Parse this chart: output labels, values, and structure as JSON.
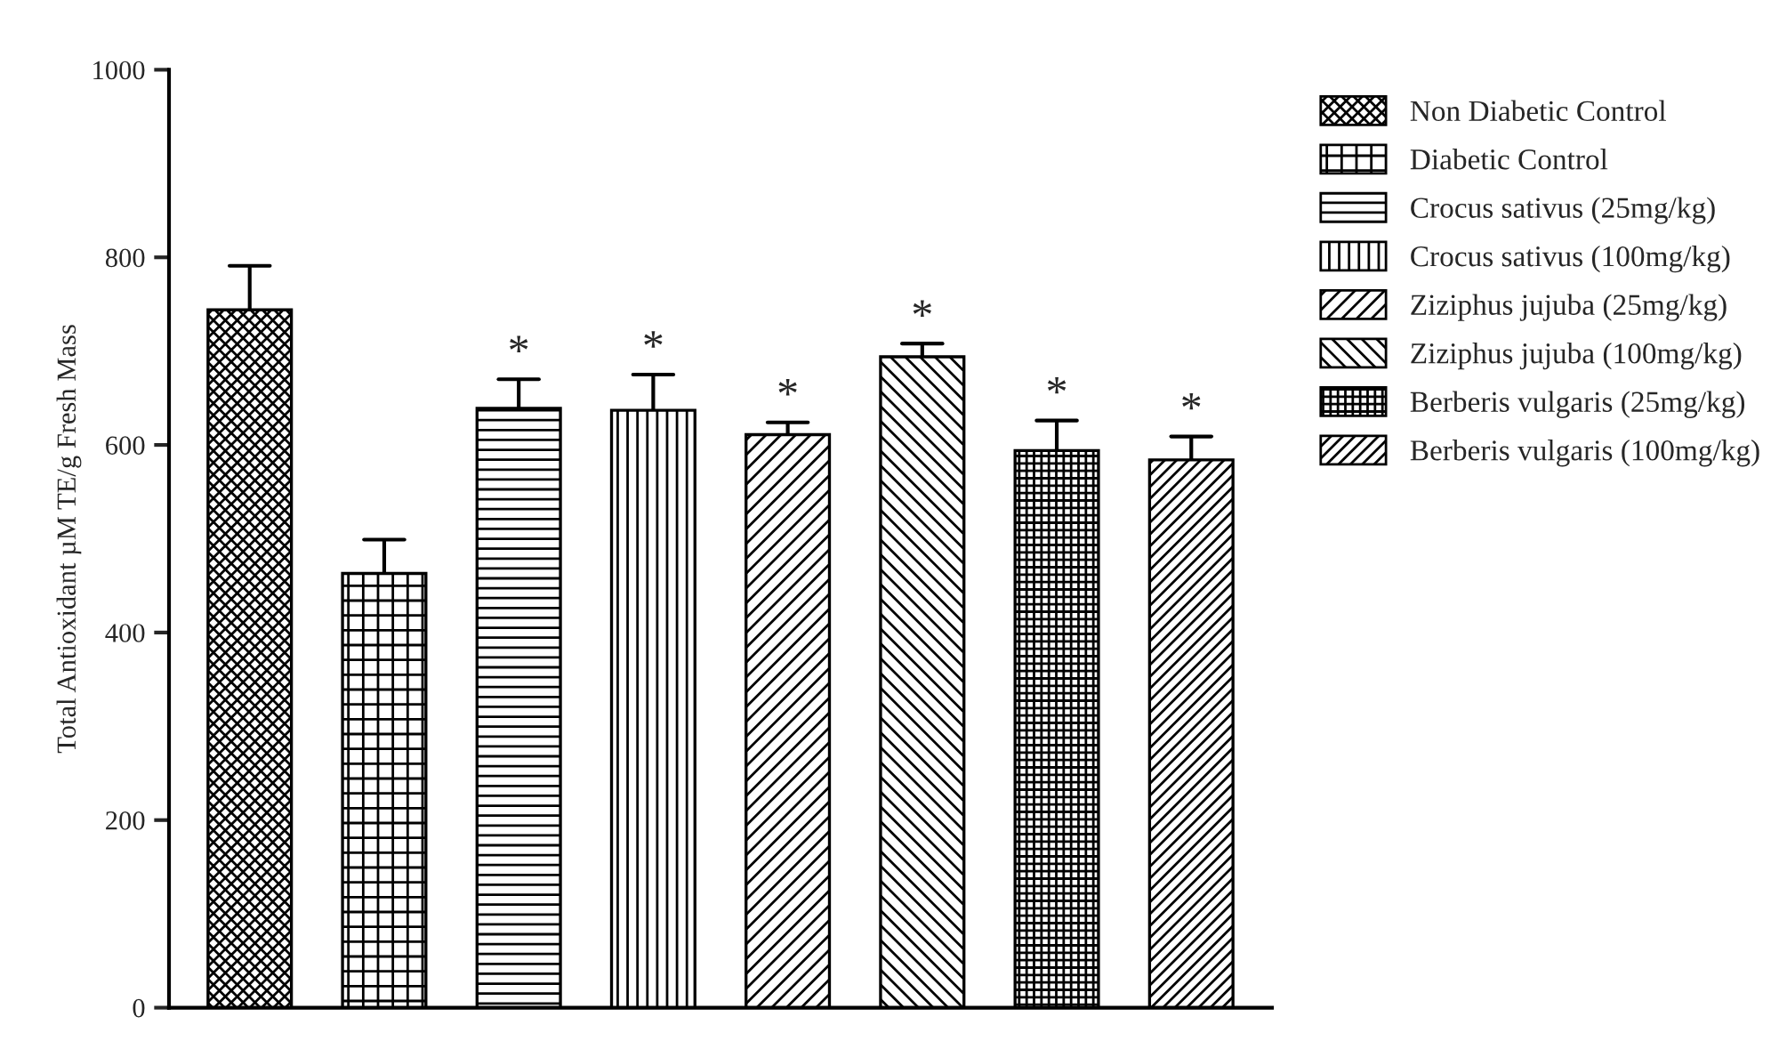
{
  "chart_data": {
    "type": "bar",
    "ylabel": "Total Antioxidant µM TE/g Fresh Mass",
    "categories": [
      null,
      null,
      null,
      null,
      null,
      null,
      null,
      null
    ],
    "series": [
      {
        "name": "Non Diabetic Control",
        "color": "#000000",
        "values": [
          744,
          null,
          null,
          null,
          null,
          null,
          null,
          null
        ],
        "errors": [
          [
            744,
            791
          ],
          null,
          null,
          null,
          null,
          null,
          null,
          null
        ]
      },
      {
        "name": "Diabetic Control",
        "color": "#000000",
        "values": [
          null,
          463,
          null,
          null,
          null,
          null,
          null,
          null
        ],
        "errors": [
          null,
          [
            463,
            499
          ],
          null,
          null,
          null,
          null,
          null,
          null
        ]
      },
      {
        "name": "Crocus sativus (25mg/kg)",
        "color": "#000000",
        "values": [
          null,
          null,
          639,
          null,
          null,
          null,
          null,
          null
        ],
        "errors": [
          null,
          null,
          [
            639,
            670
          ],
          null,
          null,
          null,
          null,
          null
        ],
        "value_labels": [
          null,
          null,
          "*",
          null,
          null,
          null,
          null,
          null
        ]
      },
      {
        "name": "Crocus sativus (100mg/kg)",
        "color": "#000000",
        "values": [
          null,
          null,
          null,
          637,
          null,
          null,
          null,
          null
        ],
        "errors": [
          null,
          null,
          null,
          [
            637,
            675
          ],
          null,
          null,
          null,
          null
        ],
        "value_labels": [
          null,
          null,
          null,
          "*",
          null,
          null,
          null,
          null
        ]
      },
      {
        "name": "Ziziphus jujuba (25mg/kg)",
        "color": "#000000",
        "values": [
          null,
          null,
          null,
          null,
          611,
          null,
          null,
          null
        ],
        "errors": [
          null,
          null,
          null,
          null,
          [
            611,
            624
          ],
          null,
          null,
          null
        ],
        "value_labels": [
          null,
          null,
          null,
          null,
          "*",
          null,
          null,
          null
        ]
      },
      {
        "name": "Ziziphus jujuba (100mg/kg)",
        "color": "#000000",
        "values": [
          null,
          null,
          null,
          null,
          null,
          694,
          null,
          null
        ],
        "errors": [
          null,
          null,
          null,
          null,
          null,
          [
            694,
            708
          ],
          null,
          null
        ],
        "value_labels": [
          null,
          null,
          null,
          null,
          null,
          "*",
          null,
          null
        ]
      },
      {
        "name": "Berberis vulgaris (25mg/kg)",
        "color": "#000000",
        "values": [
          null,
          null,
          null,
          null,
          null,
          null,
          594,
          null
        ],
        "errors": [
          null,
          null,
          null,
          null,
          null,
          null,
          [
            594,
            626
          ],
          null
        ],
        "value_labels": [
          null,
          null,
          null,
          null,
          null,
          null,
          "*",
          null
        ]
      },
      {
        "name": "Berberis vulgaris (100mg/kg)",
        "color": "#000000",
        "values": [
          null,
          null,
          null,
          null,
          null,
          null,
          null,
          584
        ],
        "errors": [
          null,
          null,
          null,
          null,
          null,
          null,
          null,
          [
            584,
            609
          ]
        ],
        "value_labels": [
          null,
          null,
          null,
          null,
          null,
          null,
          null,
          "*"
        ]
      }
    ],
    "ylim": [
      0,
      1000
    ],
    "yticks": [
      0,
      200,
      400,
      600,
      800,
      1000
    ],
    "grid": false,
    "legend": "right",
    "tick_labels": "y"
  }
}
